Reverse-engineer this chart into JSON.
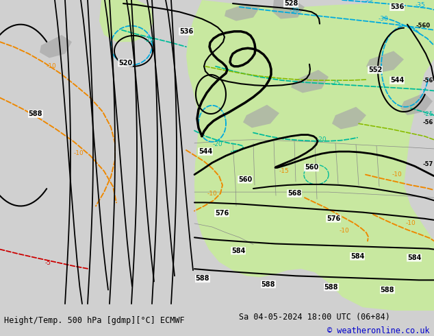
{
  "title_left": "Height/Temp. 500 hPa [gdmp][°C] ECMWF",
  "title_right": "Sa 04-05-2024 18:00 UTC (06+84)",
  "copyright": "© weatheronline.co.uk",
  "bg_color": "#d0d0d0",
  "map_bg_color": "#d0d0d0",
  "ocean_color": "#d0d0d0",
  "land_color": "#c0c0c0",
  "green_fill_color": "#c8e8a0",
  "fig_width": 6.34,
  "fig_height": 4.9,
  "bottom_bar_color": "#e0e0e0",
  "bottom_text_color": "#000000",
  "copyright_color": "#0000cc",
  "title_fontsize": 8.5,
  "copyright_fontsize": 8.5,
  "orange": "#ee8800",
  "red": "#cc0000",
  "cyan": "#00aadd",
  "teal": "#00bb99",
  "lime": "#88bb00"
}
